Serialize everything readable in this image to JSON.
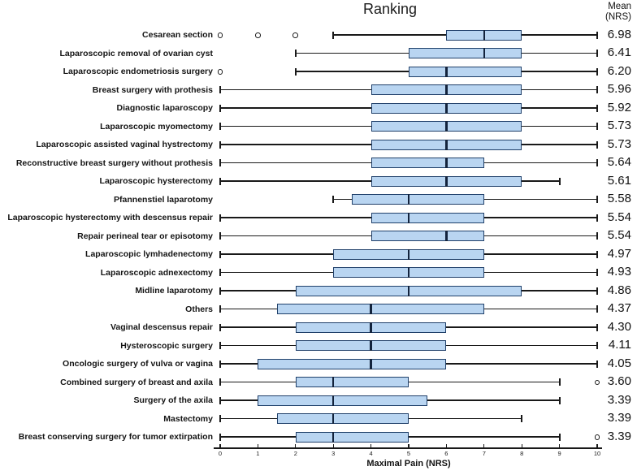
{
  "title": "Ranking",
  "mean_header": {
    "line1": "Mean",
    "line2": "(NRS)"
  },
  "chart_data": {
    "type": "boxplot",
    "orientation": "horizontal",
    "title": "Ranking",
    "xlabel": "Maximal Pain (NRS)",
    "value_column_header": "Mean (NRS)",
    "xlim": [
      0,
      10
    ],
    "x_ticks": [
      0,
      1,
      2,
      3,
      4,
      5,
      6,
      7,
      8,
      9,
      10
    ],
    "grid": false,
    "rows": [
      {
        "label": "Cesarean section",
        "min": 3,
        "q1": 6,
        "median": 7,
        "q3": 8,
        "max": 10,
        "outliers": [
          0,
          1,
          2
        ],
        "mean": "6.98"
      },
      {
        "label": "Laparoscopic removal of ovarian cyst",
        "min": 2,
        "q1": 5,
        "median": 7,
        "q3": 8,
        "max": 10,
        "outliers": [],
        "mean": "6.41"
      },
      {
        "label": "Laparoscopic endometriosis surgery",
        "min": 2,
        "q1": 5,
        "median": 6,
        "q3": 8,
        "max": 10,
        "outliers": [
          0
        ],
        "mean": "6.20"
      },
      {
        "label": "Breast surgery with prothesis",
        "min": 0,
        "q1": 4,
        "median": 6,
        "q3": 8,
        "max": 10,
        "outliers": [],
        "mean": "5.96"
      },
      {
        "label": "Diagnostic laparoscopy",
        "min": 0,
        "q1": 4,
        "median": 6,
        "q3": 8,
        "max": 10,
        "outliers": [],
        "mean": "5.92"
      },
      {
        "label": "Laparoscopic myomectomy",
        "min": 0,
        "q1": 4,
        "median": 6,
        "q3": 8,
        "max": 10,
        "outliers": [],
        "mean": "5.73"
      },
      {
        "label": "Laparoscopic assisted vaginal hystrectomy",
        "min": 0,
        "q1": 4,
        "median": 6,
        "q3": 8,
        "max": 10,
        "outliers": [],
        "mean": "5.73"
      },
      {
        "label": "Reconstructive breast surgery without prothesis",
        "min": 0,
        "q1": 4,
        "median": 6,
        "q3": 7,
        "max": 10,
        "outliers": [],
        "mean": "5.64"
      },
      {
        "label": "Laparoscopic hysterectomy",
        "min": 0,
        "q1": 4,
        "median": 6,
        "q3": 8,
        "max": 9,
        "outliers": [],
        "mean": "5.61"
      },
      {
        "label": "Pfannenstiel laparotomy",
        "min": 3,
        "q1": 3.5,
        "median": 5,
        "q3": 7,
        "max": 10,
        "outliers": [],
        "mean": "5.58"
      },
      {
        "label": "Laparoscopic hysterectomy with descensus repair",
        "min": 0,
        "q1": 4,
        "median": 5,
        "q3": 7,
        "max": 10,
        "outliers": [],
        "mean": "5.54"
      },
      {
        "label": "Repair perineal tear or episotomy",
        "min": 0,
        "q1": 4,
        "median": 6,
        "q3": 7,
        "max": 10,
        "outliers": [],
        "mean": "5.54"
      },
      {
        "label": "Laparoscopic lymhadenectomy",
        "min": 0,
        "q1": 3,
        "median": 5,
        "q3": 7,
        "max": 10,
        "outliers": [],
        "mean": "4.97"
      },
      {
        "label": "Laparoscopic adnexectomy",
        "min": 0,
        "q1": 3,
        "median": 5,
        "q3": 7,
        "max": 10,
        "outliers": [],
        "mean": "4.93"
      },
      {
        "label": "Midline laparotomy",
        "min": 0,
        "q1": 2,
        "median": 5,
        "q3": 8,
        "max": 10,
        "outliers": [],
        "mean": "4.86"
      },
      {
        "label": "Others",
        "min": 0,
        "q1": 1.5,
        "median": 4,
        "q3": 7,
        "max": 10,
        "outliers": [],
        "mean": "4.37"
      },
      {
        "label": "Vaginal descensus repair",
        "min": 0,
        "q1": 2,
        "median": 4,
        "q3": 6,
        "max": 10,
        "outliers": [],
        "mean": "4.30"
      },
      {
        "label": "Hysteroscopic surgery",
        "min": 0,
        "q1": 2,
        "median": 4,
        "q3": 6,
        "max": 10,
        "outliers": [],
        "mean": "4.11"
      },
      {
        "label": "Oncologic surgery of vulva or vagina",
        "min": 0,
        "q1": 1,
        "median": 4,
        "q3": 6,
        "max": 10,
        "outliers": [],
        "mean": "4.05"
      },
      {
        "label": "Combined surgery of breast and axila",
        "min": 0,
        "q1": 2,
        "median": 3,
        "q3": 5,
        "max": 9,
        "outliers": [
          10
        ],
        "mean": "3.60"
      },
      {
        "label": "Surgery of the axila",
        "min": 0,
        "q1": 1,
        "median": 3,
        "q3": 5.5,
        "max": 9,
        "outliers": [],
        "mean": "3.39"
      },
      {
        "label": "Mastectomy",
        "min": 0,
        "q1": 1.5,
        "median": 3,
        "q3": 5,
        "max": 8,
        "outliers": [],
        "mean": "3.39"
      },
      {
        "label": "Breast conserving surgery for tumor extirpation",
        "min": 0,
        "q1": 2,
        "median": 3,
        "q3": 5,
        "max": 9,
        "outliers": [
          10
        ],
        "mean": "3.39"
      }
    ],
    "colors": {
      "box_fill": "#b9d5f1",
      "box_border": "#20406a",
      "median_line": "#13233c",
      "whisker": "#191919",
      "text": "#111111"
    }
  }
}
